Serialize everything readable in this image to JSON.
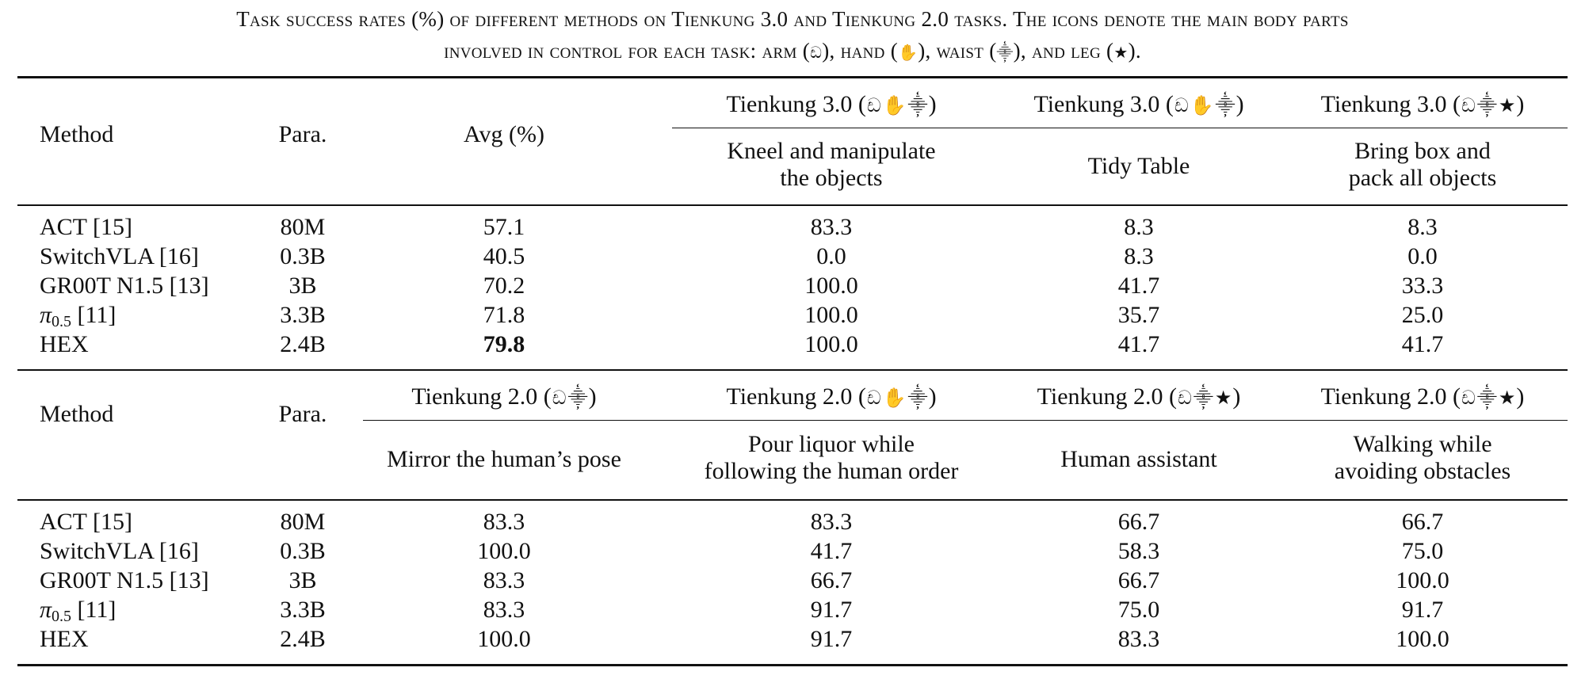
{
  "caption": {
    "line1": "Task success rates (%) of different methods on Tienkung 3.0 and Tienkung 2.0 tasks. The icons denote the main body parts",
    "line2_pre": "involved in control for each task: arm (",
    "line2_a": "), hand (",
    "line2_b": "), waist (",
    "line2_c": "), and leg (",
    "line2_end": ")."
  },
  "icons": {
    "arm": "arm-icon",
    "hand": "hand-icon",
    "waist": "waist-icon",
    "leg": "leg-icon",
    "arm_glyph": "ඩ",
    "hand_glyph": "✋",
    "waist_glyph": "⸎",
    "leg_glyph": "★"
  },
  "table1": {
    "headers": {
      "method": "Method",
      "para": "Para.",
      "avg": "Avg (%)",
      "robot1": "Tienkung 3.0 (",
      "robot2": "Tienkung 3.0 (",
      "robot3": "Tienkung 3.0 (",
      "close": ")",
      "task1_l1": "Kneel and manipulate",
      "task1_l2": "the objects",
      "task2": "Tidy Table",
      "task3_l1": "Bring box and",
      "task3_l2": "pack all objects"
    },
    "rows": [
      {
        "method": "ACT [15]",
        "para": "80M",
        "avg": "57.1",
        "t1": "83.3",
        "t2": "8.3",
        "t3": "8.3"
      },
      {
        "method": "SwitchVLA [16]",
        "para": "0.3B",
        "avg": "40.5",
        "t1": "0.0",
        "t2": "8.3",
        "t3": "0.0"
      },
      {
        "method": "GR00T N1.5 [13]",
        "para": "3B",
        "avg": "70.2",
        "t1": "100.0",
        "t2": "41.7",
        "t3": "33.3"
      },
      {
        "method_pi": "π",
        "method_sub": "0.5",
        "method_rest": " [11]",
        "para": "3.3B",
        "avg": "71.8",
        "t1": "100.0",
        "t2": "35.7",
        "t3": "25.0"
      },
      {
        "method": "HEX",
        "para": "2.4B",
        "avg": "79.8",
        "t1": "100.0",
        "t2": "41.7",
        "t3": "41.7"
      }
    ]
  },
  "table2": {
    "headers": {
      "method": "Method",
      "para": "Para.",
      "robot1": "Tienkung 2.0 (",
      "robot2": "Tienkung 2.0 (",
      "robot3": "Tienkung 2.0 (",
      "robot4": "Tienkung 2.0 (",
      "close": ")",
      "task1": "Mirror the human’s pose",
      "task2_l1": "Pour liquor while",
      "task2_l2": "following the human order",
      "task3": "Human assistant",
      "task4_l1": "Walking while",
      "task4_l2": "avoiding obstacles"
    },
    "rows": [
      {
        "method": "ACT [15]",
        "para": "80M",
        "t1": "83.3",
        "t2": "83.3",
        "t3": "66.7",
        "t4": "66.7"
      },
      {
        "method": "SwitchVLA [16]",
        "para": "0.3B",
        "t1": "100.0",
        "t2": "41.7",
        "t3": "58.3",
        "t4": "75.0"
      },
      {
        "method": "GR00T N1.5 [13]",
        "para": "3B",
        "t1": "83.3",
        "t2": "66.7",
        "t3": "66.7",
        "t4": "100.0"
      },
      {
        "method_pi": "π",
        "method_sub": "0.5",
        "method_rest": " [11]",
        "para": "3.3B",
        "t1": "83.3",
        "t2": "91.7",
        "t3": "75.0",
        "t4": "91.7"
      },
      {
        "method": "HEX",
        "para": "2.4B",
        "t1": "100.0",
        "t2": "91.7",
        "t3": "83.3",
        "t4": "100.0"
      }
    ]
  }
}
